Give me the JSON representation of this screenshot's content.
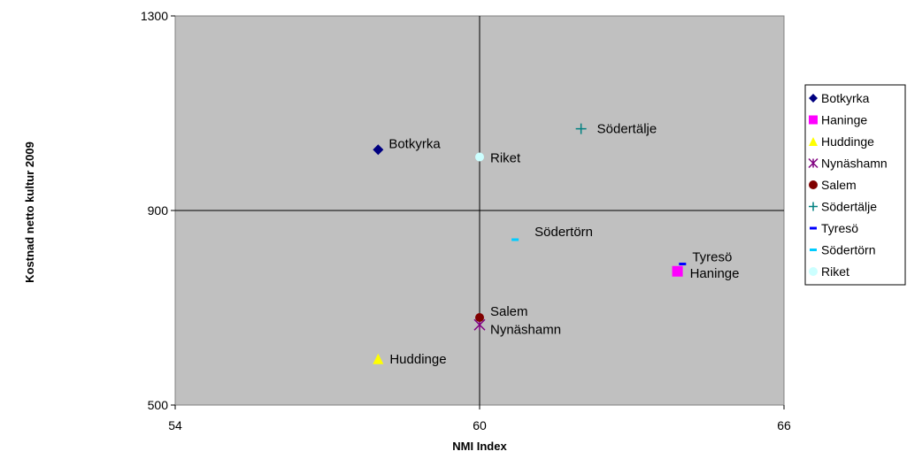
{
  "chart_data": {
    "type": "scatter",
    "title": "",
    "xlabel": "NMI Index",
    "ylabel": "Kostnad netto kultur 2009",
    "xlim": [
      54,
      66
    ],
    "ylim": [
      500,
      1300
    ],
    "x_ticks": [
      "54",
      "60",
      "66"
    ],
    "y_ticks": [
      "500",
      "900",
      "1300"
    ],
    "reference_lines": {
      "x": 60,
      "y": 900
    },
    "plot_background": "#c0c0c0",
    "legend_position": "right",
    "series": [
      {
        "name": "Botkyrka",
        "x": 58.0,
        "y": 1025,
        "marker": "diamond",
        "color": "#000080",
        "label": "Botkyrka"
      },
      {
        "name": "Haninge",
        "x": 63.9,
        "y": 775,
        "marker": "square",
        "color": "#ff00ff",
        "label": "Haninge"
      },
      {
        "name": "Huddinge",
        "x": 58.0,
        "y": 595,
        "marker": "triangle",
        "color": "#ffff00",
        "label": "Huddinge"
      },
      {
        "name": "Nynäshamn",
        "x": 60.0,
        "y": 665,
        "marker": "star",
        "color": "#800080",
        "label": "Nynäshamn"
      },
      {
        "name": "Salem",
        "x": 60.0,
        "y": 680,
        "marker": "circle",
        "color": "#800000",
        "label": "Salem"
      },
      {
        "name": "Södertälje",
        "x": 62.0,
        "y": 1068,
        "marker": "plus",
        "color": "#008080",
        "label": "Södertälje"
      },
      {
        "name": "Tyresö",
        "x": 64.0,
        "y": 790,
        "marker": "dash",
        "color": "#0000ff",
        "label": "Tyresö"
      },
      {
        "name": "Södertörn",
        "x": 60.7,
        "y": 840,
        "marker": "dash",
        "color": "#00ccff",
        "label": "Södertörn"
      },
      {
        "name": "Riket",
        "x": 60.0,
        "y": 1010,
        "marker": "circle",
        "color": "#ccffff",
        "label": "Riket"
      }
    ]
  }
}
